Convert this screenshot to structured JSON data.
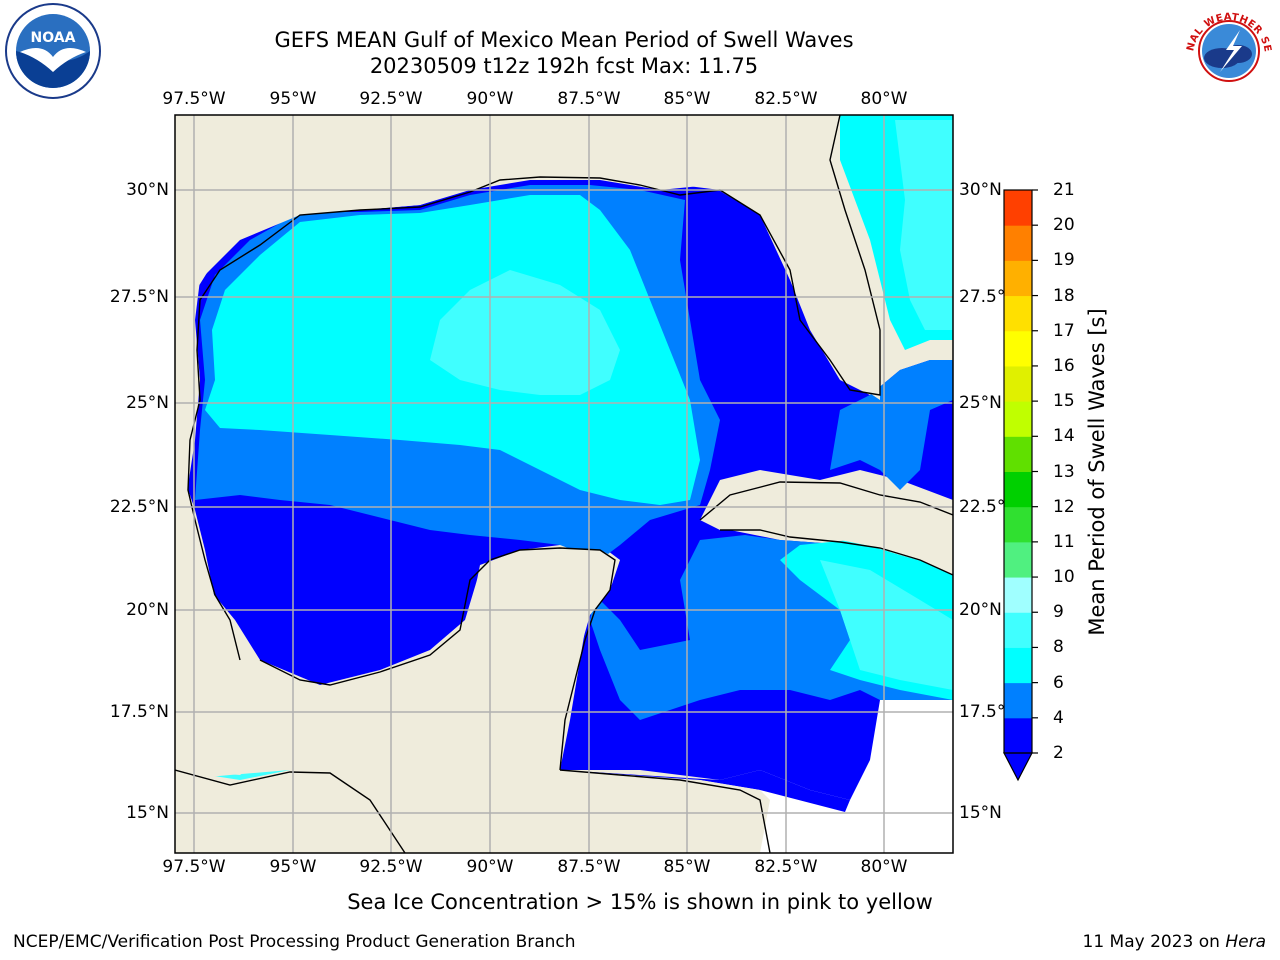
{
  "title": {
    "line1": "GEFS MEAN Gulf of Mexico Mean Period of Swell Waves",
    "line2": "20230509 t12z 192h fcst   Max: 11.75"
  },
  "logos": {
    "left": {
      "icon": "noaa-logo-icon",
      "text": "NOAA"
    },
    "right": {
      "icon": "nws-logo-icon",
      "text": "NATIONAL WEATHER SERVICE"
    }
  },
  "map": {
    "longitude_ticks": [
      "97.5°W",
      "95°W",
      "92.5°W",
      "90°W",
      "87.5°W",
      "85°W",
      "82.5°W",
      "80°W"
    ],
    "latitude_ticks": [
      "30°N",
      "27.5°N",
      "25°N",
      "22.5°N",
      "20°N",
      "17.5°N",
      "15°N"
    ],
    "lon_range": [
      -98.0,
      -78.2
    ],
    "lat_range": [
      14.0,
      32.0
    ],
    "land_color": "#efecdc",
    "grid_color": "#b0b0b0"
  },
  "colorbar": {
    "title": "Mean Period of Swell Waves [s]",
    "levels": [
      "2",
      "4",
      "6",
      "8",
      "9",
      "10",
      "11",
      "12",
      "13",
      "14",
      "15",
      "16",
      "17",
      "18",
      "19",
      "20",
      "21"
    ],
    "colors": [
      "#0000ff",
      "#0080ff",
      "#00ffff",
      "#40ffff",
      "#a0ffff",
      "#50f080",
      "#30e030",
      "#00d000",
      "#60e000",
      "#c0ff00",
      "#e0f000",
      "#ffff00",
      "#ffe000",
      "#ffb000",
      "#ff8000",
      "#ff4000",
      "#ff0000"
    ]
  },
  "note": "Sea Ice Concentration > 15% is shown in pink to yellow",
  "footer": {
    "left": "NCEP/EMC/Verification Post Processing Product Generation Branch",
    "right_prefix": "11 May 2023 on ",
    "right_host": "Hera"
  }
}
